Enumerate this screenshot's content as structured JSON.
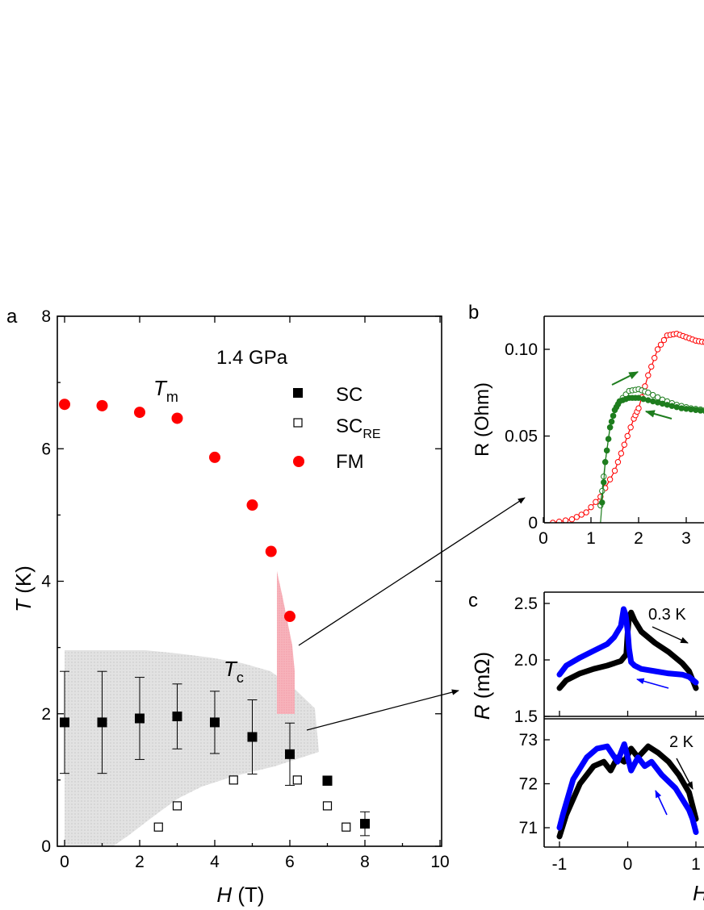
{
  "chart_data": [
    {
      "id": "a",
      "panel_label": "a",
      "type": "scatter",
      "title": "",
      "annotation": "1.4 GPa",
      "xlabel": {
        "italic": "H",
        "rest": " (T)"
      },
      "ylabel": {
        "italic": "T",
        "rest": " (K)"
      },
      "xlim": [
        0,
        10
      ],
      "ylim": [
        0,
        8
      ],
      "xticks": [
        "0",
        "2",
        "4",
        "6",
        "8",
        "10"
      ],
      "yticks": [
        "0",
        "2",
        "4",
        "6",
        "8"
      ],
      "curve_labels": {
        "tm": {
          "main": "T",
          "sub": "m"
        },
        "tc": {
          "main": "T",
          "sub": "c"
        }
      },
      "legend": [
        {
          "key": "sc",
          "name": "SC",
          "sub": ""
        },
        {
          "key": "scre",
          "name": "SC",
          "sub": "RE"
        },
        {
          "key": "fm",
          "name": "FM",
          "sub": ""
        }
      ],
      "series": {
        "fm": {
          "color": "#ff0000",
          "points": [
            [
              0,
              6.67
            ],
            [
              1,
              6.65
            ],
            [
              2,
              6.55
            ],
            [
              3,
              6.46
            ],
            [
              4,
              5.87
            ],
            [
              5,
              5.15
            ],
            [
              5.5,
              4.45
            ],
            [
              6,
              3.47
            ]
          ]
        },
        "sc": {
          "color": "#000000",
          "points": [
            [
              0,
              1.87,
              0.77
            ],
            [
              1,
              1.87,
              0.77
            ],
            [
              2,
              1.93,
              0.62
            ],
            [
              3,
              1.96,
              0.49
            ],
            [
              4,
              1.87,
              0.47
            ],
            [
              5,
              1.65,
              0.56
            ],
            [
              6,
              1.39,
              0.47
            ],
            [
              7,
              0.99,
              0.07
            ],
            [
              8,
              0.34,
              0.18
            ]
          ]
        },
        "scre": {
          "color": "#000000",
          "points": [
            [
              2.5,
              0.29
            ],
            [
              3,
              0.61
            ],
            [
              4.5,
              1.0
            ],
            [
              6.2,
              1.0
            ],
            [
              7,
              0.61
            ],
            [
              7.5,
              0.29
            ]
          ]
        }
      },
      "sc_region_color": "#dedede",
      "fm_region_color": "#f7aab2"
    },
    {
      "id": "b",
      "panel_label": "b",
      "type": "line",
      "ylabel": "R (Ohm)",
      "xlim": [
        0,
        3.5
      ],
      "ylim": [
        0,
        0.12
      ],
      "xticks": [
        "0",
        "1",
        "2",
        "3"
      ],
      "yticks": [
        "0",
        "0.05",
        "0.10"
      ],
      "series": [
        {
          "name": "red sweep",
          "color": "#ff0000",
          "x": [
            0.2,
            0.6,
            0.9,
            1.2,
            1.5,
            1.7,
            1.9,
            2.0,
            2.2,
            2.4,
            2.6,
            2.8,
            3.0,
            3.2,
            3.4,
            3.5
          ],
          "y": [
            0.0,
            0.002,
            0.006,
            0.015,
            0.03,
            0.045,
            0.06,
            0.066,
            0.085,
            0.1,
            0.108,
            0.109,
            0.107,
            0.105,
            0.104,
            0.103
          ]
        },
        {
          "name": "green up sweep",
          "color": "#1e7d1e",
          "x": [
            1.2,
            1.3,
            1.4,
            1.5,
            1.6,
            1.8,
            2.0,
            2.2,
            2.5,
            2.8,
            3.1,
            3.4,
            3.5
          ],
          "y": [
            0.01,
            0.035,
            0.055,
            0.065,
            0.07,
            0.076,
            0.077,
            0.075,
            0.071,
            0.068,
            0.066,
            0.065,
            0.065
          ]
        },
        {
          "name": "green down sweep",
          "color": "#1e7d1e",
          "x": [
            3.5,
            3.2,
            2.9,
            2.6,
            2.3,
            2.0,
            1.8,
            1.6,
            1.5,
            1.4,
            1.3,
            1.2
          ],
          "y": [
            0.064,
            0.065,
            0.066,
            0.068,
            0.07,
            0.072,
            0.072,
            0.07,
            0.065,
            0.055,
            0.035,
            0.0
          ]
        }
      ]
    },
    {
      "id": "c_top",
      "panel_label": "c",
      "type": "line",
      "annotation": "0.3 K",
      "ylabel": {
        "italic": "R",
        "rest": " (mΩ)"
      },
      "xlim": [
        -1.1,
        1.1
      ],
      "ylim": [
        1.5,
        2.6
      ],
      "yticks": [
        "1.5",
        "2.0",
        "2.5"
      ],
      "series": [
        {
          "name": "black",
          "color": "#000000",
          "x": [
            -1.0,
            -0.9,
            -0.7,
            -0.5,
            -0.3,
            -0.1,
            -0.02,
            0.0,
            0.02,
            0.05,
            0.1,
            0.2,
            0.4,
            0.6,
            0.8,
            0.9,
            1.0
          ],
          "y": [
            1.75,
            1.82,
            1.88,
            1.92,
            1.95,
            1.99,
            2.05,
            2.25,
            2.38,
            2.42,
            2.35,
            2.25,
            2.15,
            2.07,
            1.97,
            1.9,
            1.75
          ]
        },
        {
          "name": "blue",
          "color": "#0000ff",
          "x": [
            -1.0,
            -0.9,
            -0.7,
            -0.5,
            -0.3,
            -0.2,
            -0.1,
            -0.06,
            -0.03,
            0.0,
            0.02,
            0.05,
            0.1,
            0.2,
            0.4,
            0.6,
            0.8,
            0.9,
            1.0
          ],
          "y": [
            1.87,
            1.95,
            2.02,
            2.08,
            2.14,
            2.2,
            2.3,
            2.45,
            2.4,
            2.25,
            2.1,
            1.98,
            1.95,
            1.92,
            1.9,
            1.88,
            1.87,
            1.85,
            1.8
          ]
        }
      ]
    },
    {
      "id": "c_bottom",
      "type": "line",
      "annotation": "2 K",
      "xlabel": "H",
      "xlim": [
        -1.1,
        1.1
      ],
      "ylim": [
        70.5,
        73.3
      ],
      "xticks": [
        "-1",
        "0",
        "1"
      ],
      "yticks": [
        "71",
        "72",
        "73"
      ],
      "series": [
        {
          "name": "black",
          "color": "#000000",
          "x": [
            -1.0,
            -0.9,
            -0.7,
            -0.5,
            -0.35,
            -0.25,
            -0.15,
            -0.05,
            0.05,
            0.15,
            0.3,
            0.45,
            0.6,
            0.75,
            0.9,
            0.95,
            1.0
          ],
          "y": [
            70.8,
            71.3,
            72.0,
            72.4,
            72.5,
            72.3,
            72.6,
            72.5,
            72.8,
            72.6,
            72.85,
            72.7,
            72.5,
            72.2,
            71.8,
            71.5,
            71.2
          ]
        },
        {
          "name": "blue",
          "color": "#0000ff",
          "x": [
            -1.0,
            -0.95,
            -0.8,
            -0.6,
            -0.45,
            -0.3,
            -0.15,
            -0.05,
            0.05,
            0.15,
            0.25,
            0.35,
            0.5,
            0.7,
            0.9,
            0.95,
            1.0
          ],
          "y": [
            71.0,
            71.3,
            72.1,
            72.6,
            72.8,
            72.85,
            72.5,
            72.9,
            72.3,
            72.6,
            72.4,
            72.5,
            72.2,
            71.9,
            71.4,
            71.2,
            70.9
          ]
        }
      ]
    }
  ]
}
